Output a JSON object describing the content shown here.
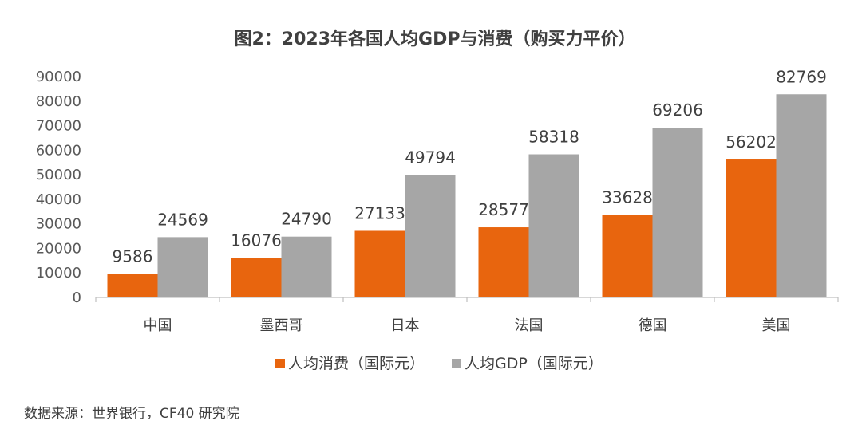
{
  "chart_data": {
    "type": "bar",
    "title": "图2：2023年各国人均GDP与消费（购买力平价）",
    "categories": [
      "中国",
      "墨西哥",
      "日本",
      "法国",
      "德国",
      "美国"
    ],
    "series": [
      {
        "name": "人均消费（国际元）",
        "color": "#E8650E",
        "values": [
          9586,
          16076,
          27133,
          28577,
          33628,
          56202
        ]
      },
      {
        "name": "人均GDP（国际元）",
        "color": "#A6A6A6",
        "values": [
          24569,
          24790,
          49794,
          58318,
          69206,
          82769
        ]
      }
    ],
    "ylim": [
      0,
      90000
    ],
    "yticks": [
      0,
      10000,
      20000,
      30000,
      40000,
      50000,
      60000,
      70000,
      80000,
      90000
    ],
    "xlabel": "",
    "ylabel": "",
    "grid": false,
    "legend": "bottom-center",
    "source": "数据来源：世界银行，CF40 研究院"
  }
}
